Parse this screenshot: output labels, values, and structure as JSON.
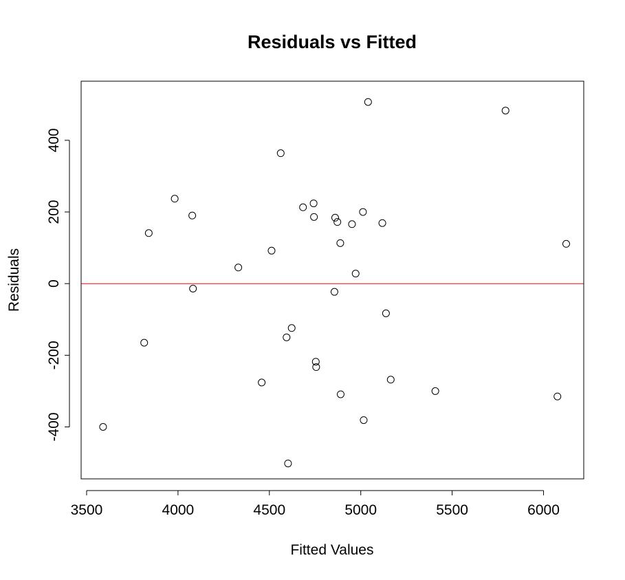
{
  "chart_data": {
    "type": "scatter",
    "title": "Residuals vs Fitted",
    "xlabel": "Fitted Values",
    "ylabel": "Residuals",
    "xlim": [
      3470,
      6220
    ],
    "ylim": [
      -545,
      565
    ],
    "xticks": [
      3500,
      4000,
      4500,
      5000,
      5500,
      6000
    ],
    "yticks": [
      -400,
      -200,
      0,
      200,
      400
    ],
    "grid": false,
    "reference_line": {
      "y": 0,
      "color": "#ff0000"
    },
    "marker_color": "#000000",
    "points": [
      {
        "x": 3590,
        "y": -400
      },
      {
        "x": 3815,
        "y": -165
      },
      {
        "x": 3840,
        "y": 141
      },
      {
        "x": 3982,
        "y": 237
      },
      {
        "x": 4078,
        "y": 190
      },
      {
        "x": 4082,
        "y": -14
      },
      {
        "x": 4330,
        "y": 45
      },
      {
        "x": 4458,
        "y": -276
      },
      {
        "x": 4512,
        "y": 92
      },
      {
        "x": 4562,
        "y": 364
      },
      {
        "x": 4594,
        "y": -150
      },
      {
        "x": 4602,
        "y": -502
      },
      {
        "x": 4622,
        "y": -124
      },
      {
        "x": 4684,
        "y": 213
      },
      {
        "x": 4742,
        "y": 224
      },
      {
        "x": 4744,
        "y": 186
      },
      {
        "x": 4754,
        "y": -218
      },
      {
        "x": 4756,
        "y": -233
      },
      {
        "x": 4856,
        "y": -23
      },
      {
        "x": 4860,
        "y": 184
      },
      {
        "x": 4872,
        "y": 172
      },
      {
        "x": 4888,
        "y": 113
      },
      {
        "x": 4890,
        "y": -309
      },
      {
        "x": 4952,
        "y": 166
      },
      {
        "x": 4972,
        "y": 28
      },
      {
        "x": 5012,
        "y": 200
      },
      {
        "x": 5016,
        "y": -381
      },
      {
        "x": 5040,
        "y": 507
      },
      {
        "x": 5118,
        "y": 169
      },
      {
        "x": 5138,
        "y": -83
      },
      {
        "x": 5164,
        "y": -268
      },
      {
        "x": 5408,
        "y": -300
      },
      {
        "x": 5792,
        "y": 483
      },
      {
        "x": 6076,
        "y": -315
      },
      {
        "x": 6124,
        "y": 111
      }
    ]
  }
}
